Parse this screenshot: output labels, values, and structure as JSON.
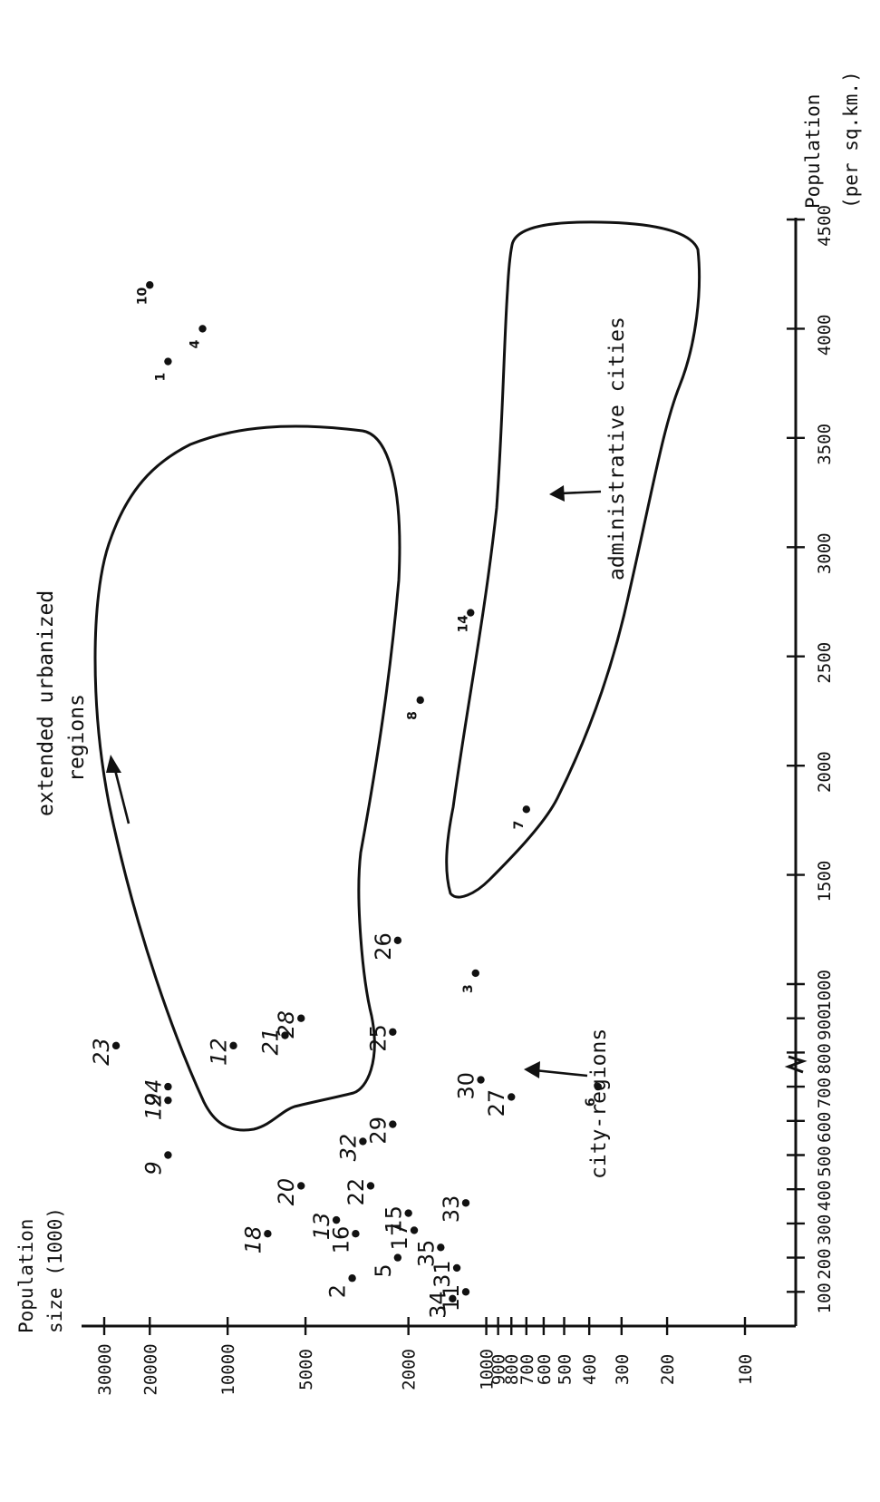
{
  "chart_data": {
    "type": "scatter",
    "title": "",
    "xlabel": "Population (per sq.km.)",
    "ylabel": "Population size (1000)",
    "x_scale": "piecewise: linear 0-1000, compressed 1000-4500 (axis break at 1000)",
    "y_scale": "log",
    "x_ticks": [
      "100",
      "200",
      "300",
      "400",
      "500",
      "600",
      "700",
      "800",
      "900",
      "1000",
      "1500",
      "2000",
      "2500",
      "3000",
      "3500",
      "4000",
      "4500"
    ],
    "y_ticks": [
      "100",
      "200",
      "300",
      "400",
      "500",
      "600",
      "700",
      "800",
      "900",
      "1000",
      "2000",
      "5000",
      "10000",
      "20000",
      "30000"
    ],
    "xlim": [
      0,
      4500
    ],
    "ylim": [
      100,
      30000
    ],
    "grid": false,
    "points": [
      {
        "label": "1",
        "x": 3850,
        "y": 17000,
        "style": "small"
      },
      {
        "label": "2",
        "x": 140,
        "y": 3300,
        "style": "plain"
      },
      {
        "label": "3",
        "x": 1050,
        "y": 1100,
        "style": "small"
      },
      {
        "label": "4",
        "x": 4000,
        "y": 12500,
        "style": "small"
      },
      {
        "label": "5",
        "x": 200,
        "y": 2200,
        "style": "plain"
      },
      {
        "label": "6",
        "x": 700,
        "y": 370,
        "style": "small"
      },
      {
        "label": "7",
        "x": 1800,
        "y": 700,
        "style": "small"
      },
      {
        "label": "8",
        "x": 2300,
        "y": 1800,
        "style": "small"
      },
      {
        "label": "9",
        "x": 500,
        "y": 17000,
        "style": "italic"
      },
      {
        "label": "10",
        "x": 4200,
        "y": 20000,
        "style": "small"
      },
      {
        "label": "11",
        "x": 100,
        "y": 1200,
        "style": "plain"
      },
      {
        "label": "12",
        "x": 820,
        "y": 9500,
        "style": "italic"
      },
      {
        "label": "13",
        "x": 310,
        "y": 3800,
        "style": "italic"
      },
      {
        "label": "14",
        "x": 2700,
        "y": 1150,
        "style": "small"
      },
      {
        "label": "15",
        "x": 330,
        "y": 2000,
        "style": "plain"
      },
      {
        "label": "16",
        "x": 270,
        "y": 3200,
        "style": "plain"
      },
      {
        "label": "17",
        "x": 280,
        "y": 1900,
        "style": "plain"
      },
      {
        "label": "18",
        "x": 270,
        "y": 7000,
        "style": "italic"
      },
      {
        "label": "19",
        "x": 660,
        "y": 17000,
        "style": "italic"
      },
      {
        "label": "20",
        "x": 410,
        "y": 5200,
        "style": "italic"
      },
      {
        "label": "21",
        "x": 850,
        "y": 6000,
        "style": "italic"
      },
      {
        "label": "22",
        "x": 410,
        "y": 2800,
        "style": "plain"
      },
      {
        "label": "23",
        "x": 820,
        "y": 27000,
        "style": "italic"
      },
      {
        "label": "24",
        "x": 700,
        "y": 17000,
        "style": "italic"
      },
      {
        "label": "25",
        "x": 860,
        "y": 2300,
        "style": "plain"
      },
      {
        "label": "26",
        "x": 1200,
        "y": 2200,
        "style": "plain"
      },
      {
        "label": "27",
        "x": 670,
        "y": 800,
        "style": "plain"
      },
      {
        "label": "28",
        "x": 900,
        "y": 5200,
        "style": "italic"
      },
      {
        "label": "29",
        "x": 590,
        "y": 2300,
        "style": "plain"
      },
      {
        "label": "30",
        "x": 720,
        "y": 1050,
        "style": "plain"
      },
      {
        "label": "31",
        "x": 170,
        "y": 1300,
        "style": "plain"
      },
      {
        "label": "32",
        "x": 540,
        "y": 3000,
        "style": "italic"
      },
      {
        "label": "33",
        "x": 360,
        "y": 1200,
        "style": "plain"
      },
      {
        "label": "34",
        "x": 80,
        "y": 1350,
        "style": "plain"
      },
      {
        "label": "35",
        "x": 230,
        "y": 1500,
        "style": "plain"
      }
    ],
    "annotations": [
      "extended urbanized regions",
      "city-regions",
      "administrative cities"
    ]
  },
  "axes": {
    "x_title_line1": "Population",
    "x_title_line2": "(per sq.km.)",
    "y_title_line1": "Population",
    "y_title_line2": "size (1000)"
  },
  "annotations": {
    "extended_line1": "extended urbanized",
    "extended_line2": "regions",
    "city_regions": "city-regions",
    "admin_cities": "administrative cities"
  }
}
